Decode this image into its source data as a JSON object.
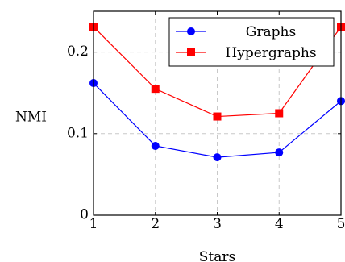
{
  "chart_data": {
    "type": "line",
    "title": "",
    "xlabel": "Stars",
    "ylabel": "NMI",
    "x": [
      1,
      2,
      3,
      4,
      5
    ],
    "xlim": [
      1,
      5
    ],
    "ylim": [
      0,
      0.25
    ],
    "xticks": [
      1,
      2,
      3,
      4,
      5
    ],
    "yticks": [
      0,
      0.1,
      0.2
    ],
    "ytick_labels": [
      "0",
      "0.1",
      "0.2"
    ],
    "grid": true,
    "legend_position": "top-right",
    "series": [
      {
        "name": "Graphs",
        "values": [
          0.162,
          0.085,
          0.071,
          0.077,
          0.14
        ],
        "color": "#0000ff",
        "marker": "circle"
      },
      {
        "name": "Hypergraphs",
        "values": [
          0.231,
          0.155,
          0.121,
          0.125,
          0.231
        ],
        "color": "#ff0000",
        "marker": "square"
      }
    ]
  }
}
